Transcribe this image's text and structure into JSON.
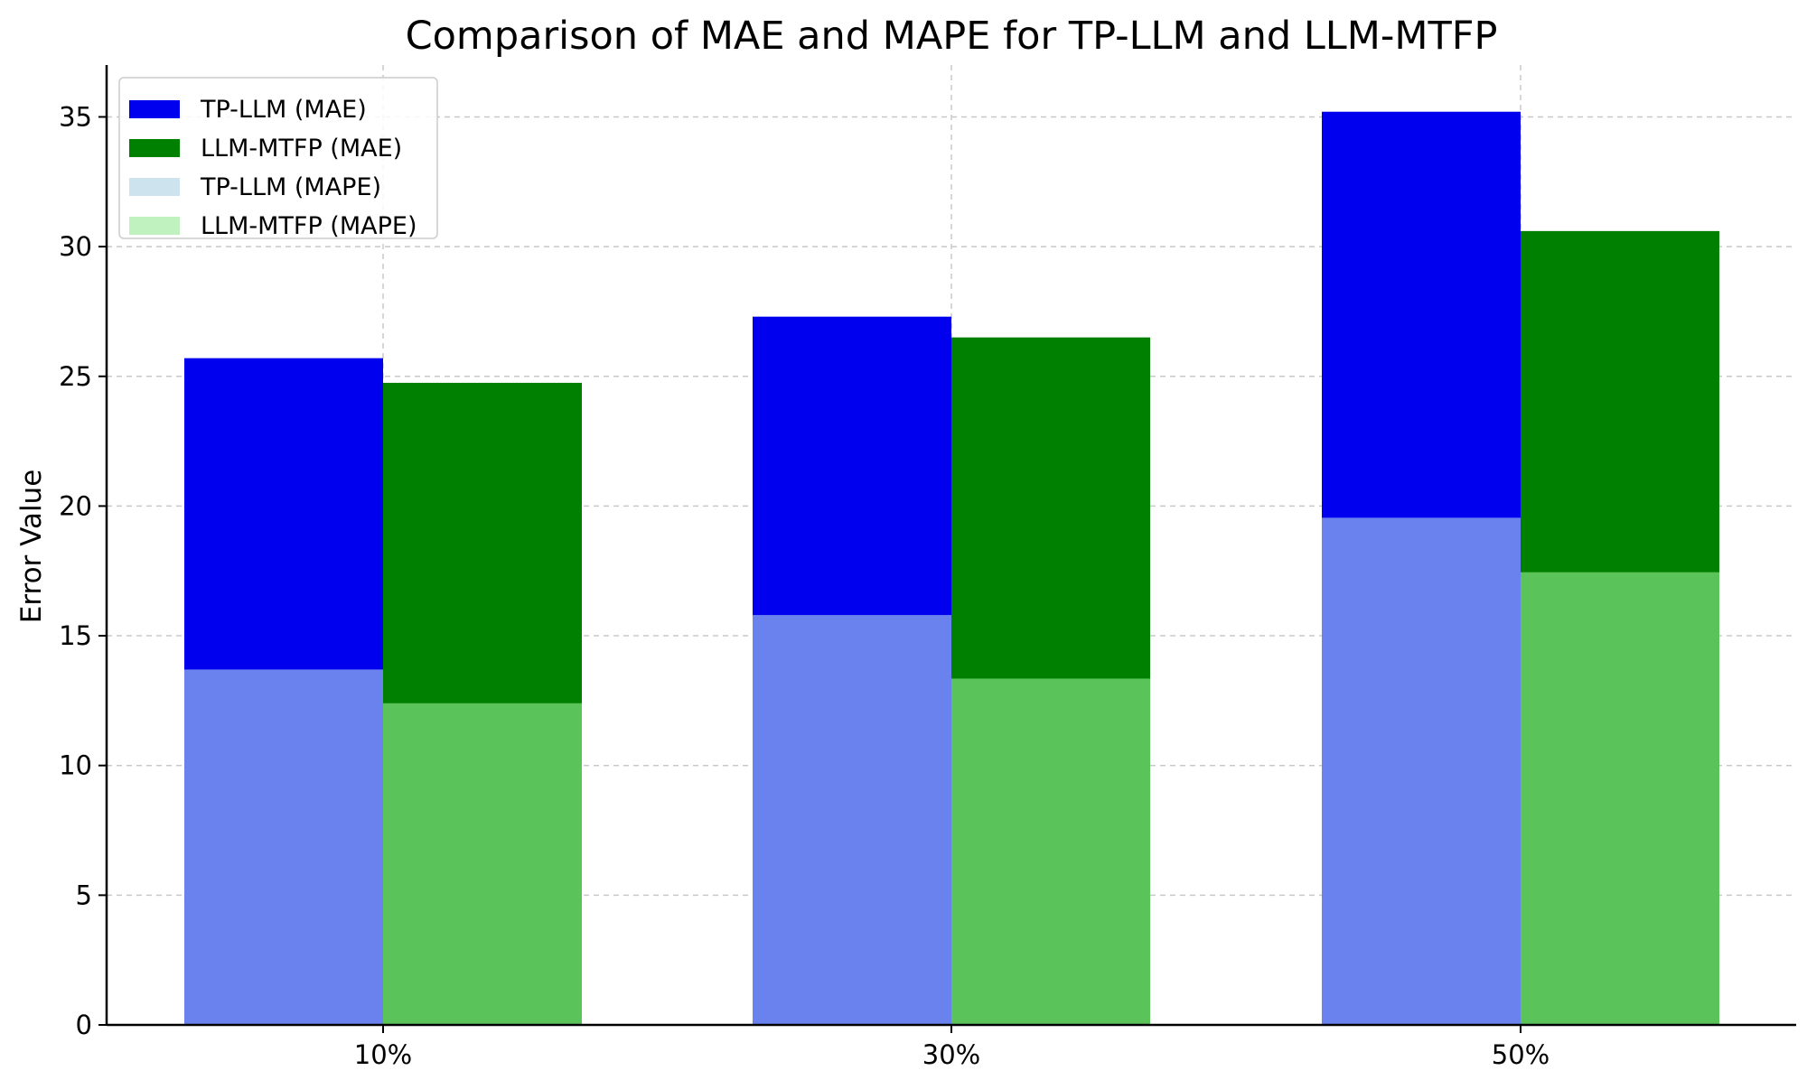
{
  "chart_data": {
    "type": "bar",
    "title": "Comparison of MAE and MAPE for TP-LLM and LLM-MTFP",
    "xlabel": "",
    "ylabel": "Error Value",
    "ylim": [
      0,
      37
    ],
    "yticks": [
      0,
      5,
      10,
      15,
      20,
      25,
      30,
      35
    ],
    "grid": true,
    "legend_position": "upper-left",
    "categories": [
      "10%",
      "30%",
      "50%"
    ],
    "series": [
      {
        "name": "TP-LLM (MAE)",
        "values": [
          25.7,
          27.3,
          35.2
        ],
        "color": "#0000ee",
        "legend_color": "#0000ee",
        "group": "TP-LLM"
      },
      {
        "name": "LLM-MTFP (MAE)",
        "values": [
          24.75,
          26.5,
          30.6
        ],
        "color": "#008000",
        "legend_color": "#008000",
        "group": "LLM-MTFP"
      },
      {
        "name": "TP-LLM (MAPE)",
        "values": [
          13.7,
          15.8,
          19.55
        ],
        "color": "#6a82ee",
        "legend_color": "#cde4ef",
        "group": "TP-LLM"
      },
      {
        "name": "LLM-MTFP (MAPE)",
        "values": [
          12.4,
          13.35,
          17.45
        ],
        "color": "#5ac45a",
        "legend_color": "#bff2bf",
        "group": "LLM-MTFP"
      }
    ]
  }
}
